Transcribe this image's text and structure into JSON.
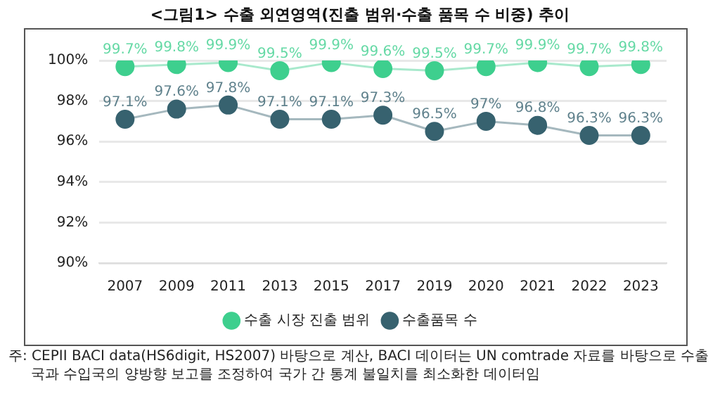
{
  "chart_data": {
    "type": "line",
    "title": "<그림1> 수출 외연영역(진출 범위·수출 품목 수 비중) 추이",
    "categories": [
      "2007",
      "2009",
      "2011",
      "2013",
      "2015",
      "2017",
      "2019",
      "2020",
      "2021",
      "2022",
      "2023"
    ],
    "series": [
      {
        "name": "수출 시장 진출 범위",
        "color": "#3ecf8e",
        "values": [
          99.7,
          99.8,
          99.9,
          99.5,
          99.9,
          99.6,
          99.5,
          99.7,
          99.9,
          99.7,
          99.8
        ],
        "value_labels": [
          "99.7%",
          "99.8%",
          "99.9%",
          "99.5%",
          "99.9%",
          "99.6%",
          "99.5%",
          "99.7%",
          "99.9%",
          "99.7%",
          "99.8%"
        ]
      },
      {
        "name": "수출품목 수",
        "color": "#37626f",
        "values": [
          97.1,
          97.6,
          97.8,
          97.1,
          97.1,
          97.3,
          96.5,
          97,
          96.8,
          96.3,
          96.3
        ],
        "value_labels": [
          "97.1%",
          "97.6%",
          "97.8%",
          "97.1%",
          "97.1%",
          "97.3%",
          "96.5%",
          "97%",
          "96.8%",
          "96.3%",
          "96.3%"
        ]
      }
    ],
    "ylim": [
      90,
      100
    ],
    "yticks": [
      {
        "value": 90,
        "label": "90%"
      },
      {
        "value": 92,
        "label": "92%"
      },
      {
        "value": 94,
        "label": "94%"
      },
      {
        "value": 96,
        "label": "96%"
      },
      {
        "value": 98,
        "label": "98%"
      },
      {
        "value": 100,
        "label": "100%"
      }
    ],
    "grid": "y",
    "legend": "bottom",
    "marker": "circle",
    "line_style": "solid",
    "annotations": [
      "주: CEPII BACI data(HS6digit, HS2007) 바탕으로 계산, BACI 데이터는 UN comtrade 자료를 바탕으로 수출국과 수입국의 양방향 보고를 조정하여 국가 간 통계 불일치를 최소화한 데이터임"
    ]
  }
}
